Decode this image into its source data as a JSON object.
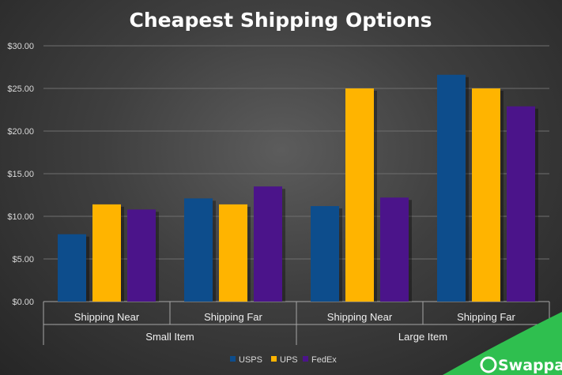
{
  "chart_data": {
    "type": "bar",
    "title": "Cheapest Shipping Options",
    "categories": [
      "Shipping Near",
      "Shipping Far",
      "Shipping Near",
      "Shipping Far"
    ],
    "groups": [
      {
        "label": "Small Item",
        "categories": [
          "Shipping Near",
          "Shipping Far"
        ]
      },
      {
        "label": "Large Item",
        "categories": [
          "Shipping Near",
          "Shipping Far"
        ]
      }
    ],
    "series": [
      {
        "name": "USPS",
        "color": "#0d4d8c",
        "values": [
          7.9,
          12.1,
          11.2,
          26.6
        ]
      },
      {
        "name": "UPS",
        "color": "#ffb400",
        "values": [
          11.4,
          11.4,
          25.0,
          25.0
        ]
      },
      {
        "name": "FedEx",
        "color": "#4b148a",
        "values": [
          10.8,
          13.5,
          12.2,
          22.9
        ]
      }
    ],
    "ylim": [
      0,
      30
    ],
    "yticks": [
      "$0.00",
      "$5.00",
      "$10.00",
      "$15.00",
      "$20.00",
      "$25.00",
      "$30.00"
    ],
    "grid": true,
    "legend_position": "bottom"
  },
  "brand": {
    "name": "Swappa",
    "accent": "#2fbf4f"
  }
}
